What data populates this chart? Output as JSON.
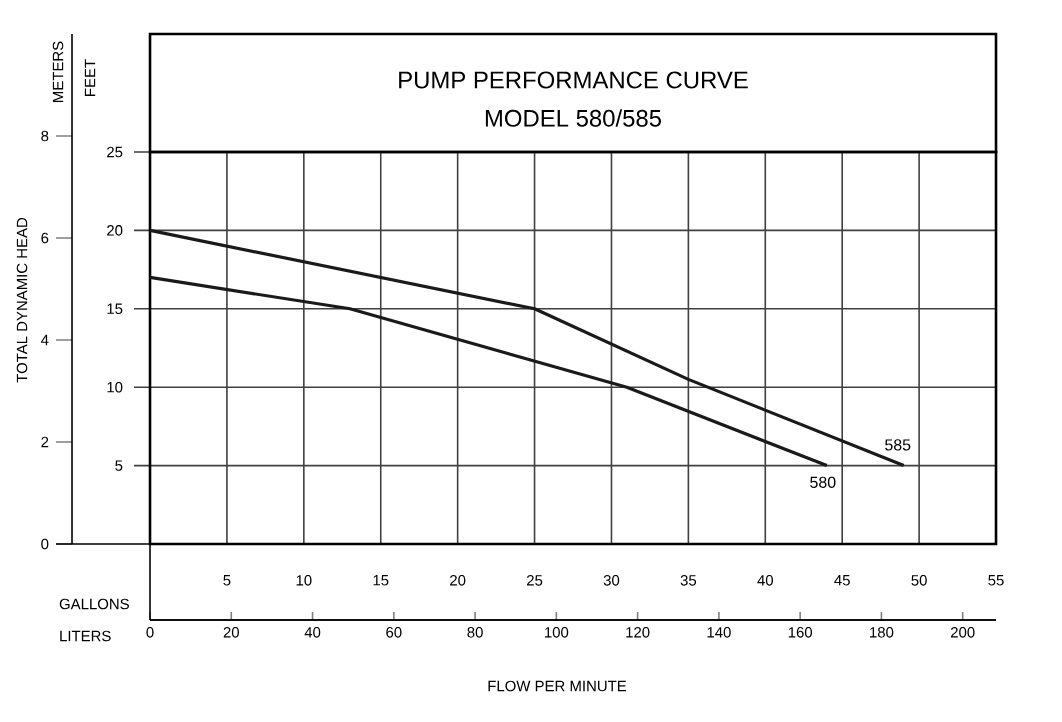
{
  "chart_data": {
    "type": "line",
    "title": "PUMP PERFORMANCE CURVE",
    "subtitle": "MODEL 580/585",
    "xlabel": "GALLONS",
    "x2label": "LITERS",
    "ylabel": "FEET",
    "y2label": "METERS",
    "annotations": [
      "TOTAL DYNAMIC HEAD",
      "FLOW PER MINUTE"
    ],
    "xlim": [
      0,
      55
    ],
    "xticks": [
      5,
      10,
      15,
      20,
      25,
      30,
      35,
      40,
      45,
      50,
      55
    ],
    "x2lim": [
      0,
      208.2
    ],
    "x2ticks": [
      0,
      20,
      40,
      60,
      80,
      100,
      120,
      140,
      160,
      180,
      200
    ],
    "ylim": [
      0,
      25
    ],
    "yticks": [
      5,
      10,
      15,
      20,
      25
    ],
    "y2lim": [
      0,
      10
    ],
    "y2ticks": [
      0,
      2,
      4,
      6,
      8
    ],
    "grid": true,
    "legend": false,
    "line_style": "solid",
    "marker": "none",
    "series": [
      {
        "name": "585",
        "color": "#1a1a1a",
        "x": [
          0,
          25,
          35,
          49
        ],
        "values": [
          20,
          15,
          10.5,
          5
        ]
      },
      {
        "name": "580",
        "color": "#1a1a1a",
        "x": [
          0,
          13,
          31,
          44
        ],
        "values": [
          17,
          15,
          10,
          5
        ]
      }
    ]
  }
}
